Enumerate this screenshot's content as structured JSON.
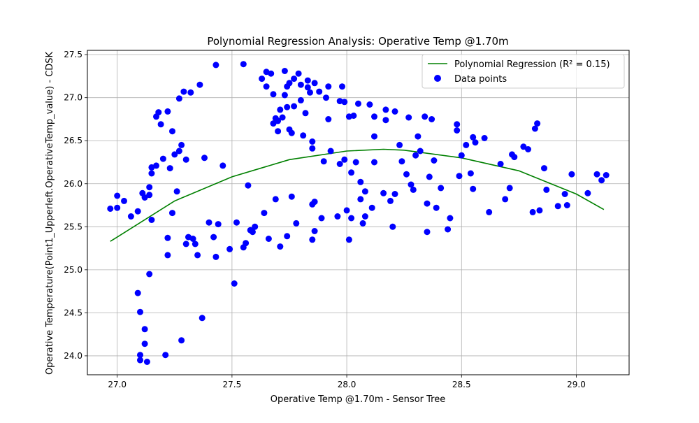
{
  "chart_data": {
    "type": "scatter",
    "title": "Polynomial Regression Analysis: Operative Temp @1.70m",
    "xlabel": "Operative Temp @1.70m - Sensor Tree",
    "ylabel": "Operative Temperature(Point1_Upperleft.OperativeTemp_value) - CDSK",
    "xlim": [
      26.87,
      29.23
    ],
    "ylim": [
      23.78,
      27.55
    ],
    "xticks": [
      27.0,
      27.5,
      28.0,
      28.5,
      29.0
    ],
    "yticks": [
      24.0,
      24.5,
      25.0,
      25.5,
      26.0,
      26.5,
      27.0,
      27.5
    ],
    "xtick_labels": [
      "27.0",
      "27.5",
      "28.0",
      "28.5",
      "29.0"
    ],
    "ytick_labels": [
      "24.0",
      "24.5",
      "25.0",
      "25.5",
      "26.0",
      "26.5",
      "27.0",
      "27.5"
    ],
    "grid": true,
    "legend_position": "top-right",
    "legend": [
      "Polynomial Regression (R² = 0.15)",
      "Data points"
    ],
    "colors": {
      "points": "#0000ff",
      "regression": "#008000",
      "grid": "#b0b0b0",
      "axes": "#000000"
    },
    "regression": {
      "name": "Polynomial Regression (R² = 0.15)",
      "degree": 2,
      "x": [
        26.97,
        27.0,
        27.25,
        27.5,
        27.75,
        28.0,
        28.16,
        28.25,
        28.5,
        28.75,
        29.0,
        29.12
      ],
      "y": [
        25.33,
        25.38,
        25.8,
        26.08,
        26.28,
        26.38,
        26.4,
        26.39,
        26.3,
        26.15,
        25.88,
        25.7
      ]
    },
    "series": [
      {
        "name": "Data points",
        "points": [
          [
            26.97,
            25.71
          ],
          [
            27.0,
            25.86
          ],
          [
            27.0,
            25.72
          ],
          [
            27.03,
            25.8
          ],
          [
            27.06,
            25.62
          ],
          [
            27.09,
            25.68
          ],
          [
            27.09,
            24.73
          ],
          [
            27.1,
            24.51
          ],
          [
            27.1,
            24.01
          ],
          [
            27.1,
            23.95
          ],
          [
            27.11,
            25.89
          ],
          [
            27.12,
            25.84
          ],
          [
            27.12,
            24.31
          ],
          [
            27.12,
            24.14
          ],
          [
            27.13,
            23.93
          ],
          [
            27.14,
            25.96
          ],
          [
            27.14,
            25.87
          ],
          [
            27.14,
            24.95
          ],
          [
            27.15,
            26.12
          ],
          [
            27.15,
            26.19
          ],
          [
            27.15,
            25.58
          ],
          [
            27.17,
            26.21
          ],
          [
            27.17,
            26.78
          ],
          [
            27.18,
            26.83
          ],
          [
            27.19,
            26.69
          ],
          [
            27.2,
            26.29
          ],
          [
            27.21,
            24.01
          ],
          [
            27.22,
            26.84
          ],
          [
            27.22,
            25.37
          ],
          [
            27.22,
            25.17
          ],
          [
            27.23,
            26.18
          ],
          [
            27.24,
            26.61
          ],
          [
            27.24,
            25.66
          ],
          [
            27.25,
            26.34
          ],
          [
            27.26,
            25.91
          ],
          [
            27.27,
            26.99
          ],
          [
            27.27,
            26.38
          ],
          [
            27.28,
            26.45
          ],
          [
            27.28,
            24.18
          ],
          [
            27.29,
            27.07
          ],
          [
            27.3,
            26.28
          ],
          [
            27.3,
            25.3
          ],
          [
            27.31,
            25.38
          ],
          [
            27.32,
            27.06
          ],
          [
            27.33,
            25.36
          ],
          [
            27.34,
            25.3
          ],
          [
            27.35,
            25.17
          ],
          [
            27.36,
            27.15
          ],
          [
            27.37,
            24.44
          ],
          [
            27.38,
            26.3
          ],
          [
            27.4,
            25.55
          ],
          [
            27.42,
            25.38
          ],
          [
            27.43,
            25.15
          ],
          [
            27.43,
            27.38
          ],
          [
            27.44,
            25.53
          ],
          [
            27.46,
            26.21
          ],
          [
            27.49,
            25.24
          ],
          [
            27.51,
            24.84
          ],
          [
            27.52,
            25.55
          ],
          [
            27.55,
            27.39
          ],
          [
            27.55,
            25.26
          ],
          [
            27.56,
            25.31
          ],
          [
            27.57,
            25.98
          ],
          [
            27.58,
            25.46
          ],
          [
            27.59,
            25.44
          ],
          [
            27.6,
            25.5
          ],
          [
            27.63,
            27.22
          ],
          [
            27.64,
            25.66
          ],
          [
            27.65,
            27.3
          ],
          [
            27.65,
            27.13
          ],
          [
            27.66,
            25.36
          ],
          [
            27.67,
            27.28
          ],
          [
            27.68,
            27.04
          ],
          [
            27.68,
            26.7
          ],
          [
            27.69,
            26.76
          ],
          [
            27.69,
            25.82
          ],
          [
            27.7,
            26.73
          ],
          [
            27.7,
            26.61
          ],
          [
            27.71,
            26.86
          ],
          [
            27.71,
            25.27
          ],
          [
            27.72,
            26.77
          ],
          [
            27.73,
            27.31
          ],
          [
            27.73,
            27.03
          ],
          [
            27.74,
            26.89
          ],
          [
            27.74,
            27.13
          ],
          [
            27.74,
            25.39
          ],
          [
            27.75,
            27.17
          ],
          [
            27.75,
            26.63
          ],
          [
            27.76,
            26.59
          ],
          [
            27.76,
            25.85
          ],
          [
            27.77,
            27.22
          ],
          [
            27.77,
            26.9
          ],
          [
            27.78,
            25.54
          ],
          [
            27.79,
            27.28
          ],
          [
            27.8,
            27.15
          ],
          [
            27.8,
            26.97
          ],
          [
            27.81,
            26.56
          ],
          [
            27.82,
            26.82
          ],
          [
            27.83,
            27.2
          ],
          [
            27.83,
            27.12
          ],
          [
            27.84,
            27.06
          ],
          [
            27.85,
            26.49
          ],
          [
            27.85,
            26.41
          ],
          [
            27.85,
            25.76
          ],
          [
            27.85,
            25.35
          ],
          [
            27.86,
            27.17
          ],
          [
            27.86,
            25.45
          ],
          [
            27.86,
            25.79
          ],
          [
            27.88,
            27.07
          ],
          [
            27.89,
            25.6
          ],
          [
            27.9,
            26.26
          ],
          [
            27.91,
            27.0
          ],
          [
            27.92,
            27.13
          ],
          [
            27.92,
            26.75
          ],
          [
            27.93,
            26.38
          ],
          [
            27.96,
            25.62
          ],
          [
            27.97,
            26.96
          ],
          [
            27.97,
            26.23
          ],
          [
            27.98,
            27.13
          ],
          [
            27.99,
            26.95
          ],
          [
            27.99,
            26.28
          ],
          [
            28.0,
            25.69
          ],
          [
            28.01,
            26.78
          ],
          [
            28.01,
            25.35
          ],
          [
            28.02,
            26.13
          ],
          [
            28.02,
            25.6
          ],
          [
            28.03,
            26.79
          ],
          [
            28.04,
            26.25
          ],
          [
            28.05,
            26.93
          ],
          [
            28.06,
            26.02
          ],
          [
            28.06,
            25.82
          ],
          [
            28.07,
            25.54
          ],
          [
            28.08,
            25.91
          ],
          [
            28.08,
            25.62
          ],
          [
            28.1,
            26.92
          ],
          [
            28.11,
            25.72
          ],
          [
            28.12,
            26.78
          ],
          [
            28.12,
            26.55
          ],
          [
            28.12,
            26.25
          ],
          [
            28.16,
            25.89
          ],
          [
            28.17,
            26.86
          ],
          [
            28.17,
            26.74
          ],
          [
            28.19,
            25.8
          ],
          [
            28.2,
            25.5
          ],
          [
            28.21,
            26.84
          ],
          [
            28.21,
            25.88
          ],
          [
            28.23,
            26.45
          ],
          [
            28.24,
            26.26
          ],
          [
            28.26,
            26.11
          ],
          [
            28.27,
            26.77
          ],
          [
            28.28,
            25.99
          ],
          [
            28.29,
            25.93
          ],
          [
            28.3,
            26.33
          ],
          [
            28.31,
            26.55
          ],
          [
            28.32,
            26.38
          ],
          [
            28.34,
            26.78
          ],
          [
            28.35,
            25.44
          ],
          [
            28.35,
            25.77
          ],
          [
            28.36,
            26.08
          ],
          [
            28.37,
            26.75
          ],
          [
            28.38,
            26.27
          ],
          [
            28.39,
            25.72
          ],
          [
            28.41,
            25.95
          ],
          [
            28.44,
            25.47
          ],
          [
            28.45,
            25.6
          ],
          [
            28.48,
            26.69
          ],
          [
            28.48,
            26.62
          ],
          [
            28.49,
            26.09
          ],
          [
            28.5,
            26.33
          ],
          [
            28.52,
            26.45
          ],
          [
            28.54,
            26.12
          ],
          [
            28.55,
            26.54
          ],
          [
            28.55,
            25.94
          ],
          [
            28.56,
            26.48
          ],
          [
            28.6,
            26.53
          ],
          [
            28.62,
            25.67
          ],
          [
            28.67,
            26.23
          ],
          [
            28.69,
            25.82
          ],
          [
            28.71,
            25.95
          ],
          [
            28.72,
            26.34
          ],
          [
            28.73,
            26.31
          ],
          [
            28.77,
            26.43
          ],
          [
            28.79,
            26.4
          ],
          [
            28.81,
            25.67
          ],
          [
            28.82,
            26.64
          ],
          [
            28.83,
            26.7
          ],
          [
            28.84,
            25.69
          ],
          [
            28.86,
            26.18
          ],
          [
            28.87,
            25.93
          ],
          [
            28.92,
            25.74
          ],
          [
            28.95,
            25.88
          ],
          [
            28.96,
            25.75
          ],
          [
            28.98,
            26.11
          ],
          [
            29.05,
            25.89
          ],
          [
            29.09,
            26.11
          ],
          [
            29.11,
            26.04
          ],
          [
            29.13,
            26.1
          ]
        ]
      }
    ]
  }
}
